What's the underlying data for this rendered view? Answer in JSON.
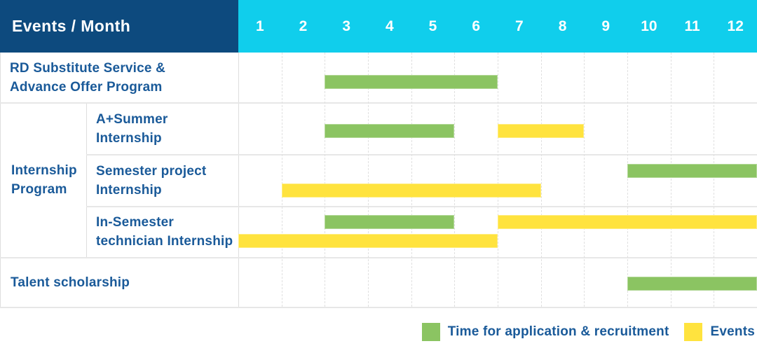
{
  "header": {
    "title": "Events / Month"
  },
  "colors": {
    "navy": "#0D4A7E",
    "cyan": "#10CEEC",
    "green": "#8BC462",
    "yellow": "#FFE33E",
    "label_blue": "#1A5A99"
  },
  "chart_data": {
    "type": "gantt",
    "title": "Events / Month",
    "months": [
      "1",
      "2",
      "3",
      "4",
      "5",
      "6",
      "7",
      "8",
      "9",
      "10",
      "11",
      "12"
    ],
    "x_axis": {
      "unit": "month",
      "range": [
        1,
        12
      ]
    },
    "row_group": {
      "label_lines": [
        "Internship",
        "Program"
      ],
      "label": "Internship Program",
      "member_rows": [
        "A+Summer Internship",
        "Semester project Internship",
        "In-Semester technician Internship"
      ]
    },
    "rows": [
      {
        "label": "RD Substitute Service & Advance Offer Program",
        "label_lines": [
          "RD Substitute Service &",
          "Advance Offer Program"
        ],
        "bars": [
          {
            "series": "Time for application & recruitment",
            "color_key": "green",
            "start_month": 3,
            "end_month": 6,
            "lane": 0
          }
        ]
      },
      {
        "label": "A+Summer Internship",
        "label_lines": [
          "A+Summer",
          "Internship"
        ],
        "bars": [
          {
            "series": "Time for application & recruitment",
            "color_key": "green",
            "start_month": 3,
            "end_month": 5,
            "lane": 0
          },
          {
            "series": "Events",
            "color_key": "yellow",
            "start_month": 7,
            "end_month": 8,
            "lane": 0
          }
        ]
      },
      {
        "label": "Semester project Internship",
        "label_lines": [
          "Semester project",
          "Internship"
        ],
        "bars": [
          {
            "series": "Time for application & recruitment",
            "color_key": "green",
            "start_month": 10,
            "end_month": 12,
            "lane": 0
          },
          {
            "series": "Events",
            "color_key": "yellow",
            "start_month": 2,
            "end_month": 7,
            "lane": 1
          }
        ]
      },
      {
        "label": "In-Semester technician Internship",
        "label_lines": [
          "In-Semester",
          "technician Internship"
        ],
        "bars": [
          {
            "series": "Time for application & recruitment",
            "color_key": "green",
            "start_month": 3,
            "end_month": 5,
            "lane": 0
          },
          {
            "series": "Events",
            "color_key": "yellow",
            "start_month": 7,
            "end_month": 12,
            "lane": 0
          },
          {
            "series": "Events",
            "color_key": "yellow",
            "start_month": 1,
            "end_month": 6,
            "lane": 1
          }
        ]
      },
      {
        "label": "Talent scholarship",
        "label_lines": [
          "Talent scholarship"
        ],
        "bars": [
          {
            "series": "Time for application & recruitment",
            "color_key": "green",
            "start_month": 10,
            "end_month": 12,
            "lane": 0
          }
        ]
      }
    ],
    "legend": [
      {
        "label": "Time for application & recruitment",
        "color_key": "green",
        "color": "#8BC462"
      },
      {
        "label": "Events",
        "color_key": "yellow",
        "color": "#FFE33E"
      }
    ],
    "legend_position": "bottom-right",
    "grid": true
  }
}
